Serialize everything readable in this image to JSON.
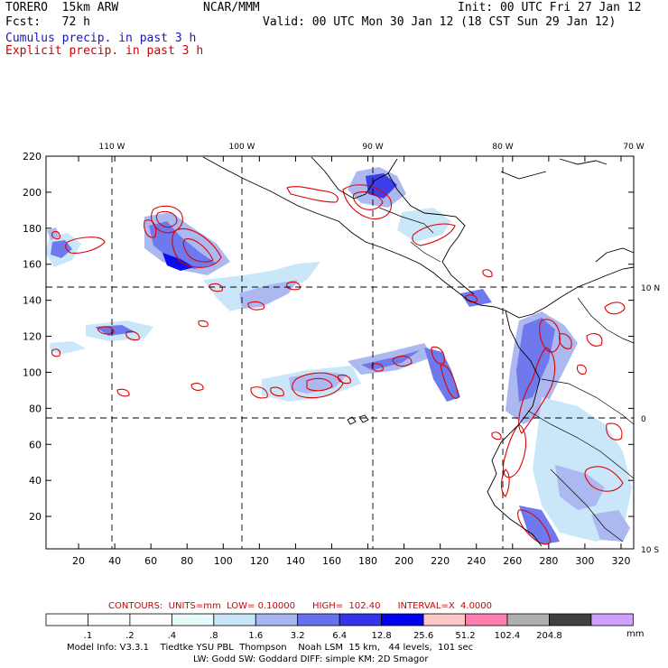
{
  "header": {
    "model": "TORERO  15km ARW",
    "center": "NCAR/MMM",
    "init": "Init: 00 UTC Fri 27 Jan 12",
    "fcst": "Fcst:   72 h",
    "valid": "Valid: 00 UTC Mon 30 Jan 12 (18 CST Sun 29 Jan 12)",
    "line_cumulus": "Cumulus precip. in past 3 h",
    "line_explicit": "Explicit precip. in past 3 h"
  },
  "axes": {
    "top_lon": [
      "110 W",
      "100 W",
      "90 W",
      "80 W",
      "70 W"
    ],
    "right_lat": [
      "10 N",
      "0",
      "10 S"
    ],
    "left_y": [
      "220",
      "200",
      "180",
      "160",
      "140",
      "120",
      "100",
      "80",
      "60",
      "40",
      "20"
    ],
    "bottom_x": [
      "20",
      "40",
      "60",
      "80",
      "100",
      "120",
      "140",
      "160",
      "180",
      "200",
      "220",
      "240",
      "260",
      "280",
      "300",
      "320"
    ]
  },
  "contour_info": {
    "label": "CONTOURS:  UNITS=mm  LOW= 0.10000      HIGH=  102.40      INTERVAL=X  4.0000"
  },
  "colorbar": {
    "ticks": [
      ".1",
      ".2",
      ".4",
      ".8",
      "1.6",
      "3.2",
      "6.4",
      "12.8",
      "25.6",
      "51.2",
      "102.4",
      "204.8"
    ],
    "unit": "mm",
    "colors": [
      "#ffffff",
      "#ffffff",
      "#ffffff",
      "#e8fbfb",
      "#c8e6fa",
      "#a7b6f0",
      "#6672ec",
      "#3434ea",
      "#0000f0",
      "#ffc8c8",
      "#ff80b0",
      "#b0b0b0",
      "#404040",
      "#d0a0ff"
    ]
  },
  "footer": {
    "line1": "Model Info: V3.3.1    Tiedtke YSU PBL  Thompson    Noah LSM  15 km,   44 levels,  101 sec",
    "line2": "LW: Godd SW: Goddard DIFF: simple KM: 2D Smagor"
  }
}
